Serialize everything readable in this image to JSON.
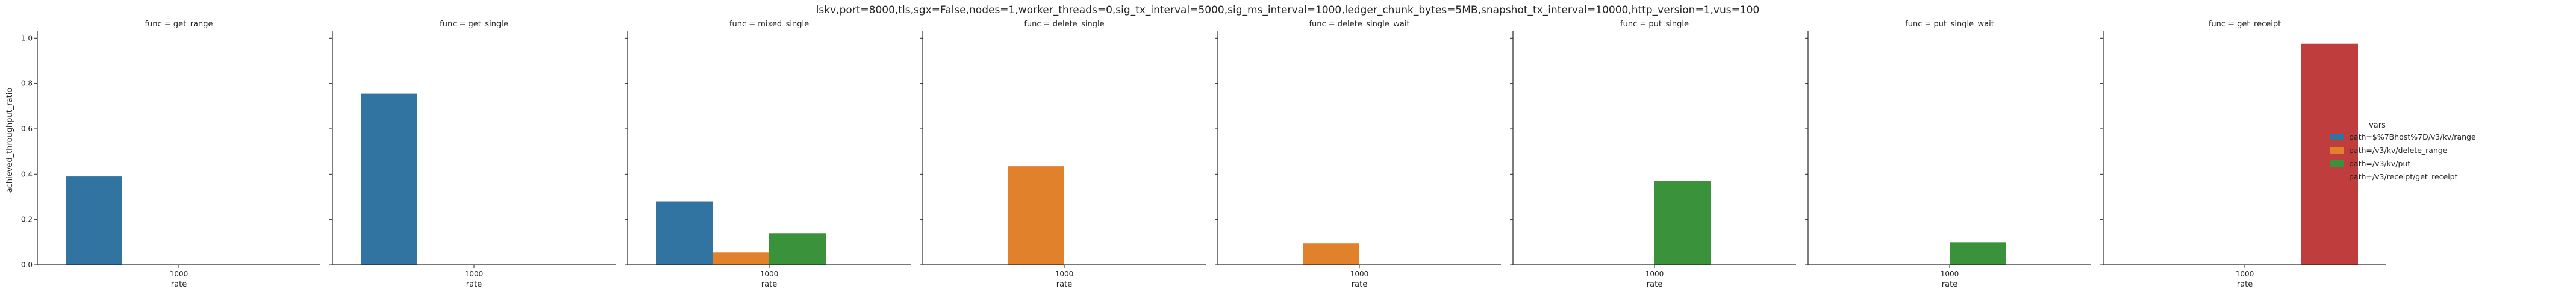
{
  "chart_data": {
    "type": "bar",
    "title": "lskv,port=8000,tls,sgx=False,nodes=1,worker_threads=0,sig_tx_interval=5000,sig_ms_interval=1000,ledger_chunk_bytes=5MB,snapshot_tx_interval=10000,http_version=1,vus=100",
    "xlabel": "rate",
    "ylabel": "achieved_throughput_ratio",
    "ylim": [
      0,
      1.03
    ],
    "yticks": [
      "0.0",
      "0.2",
      "0.4",
      "0.6",
      "0.8",
      "1.0"
    ],
    "categories": [
      "1000"
    ],
    "legend": {
      "title": "vars",
      "placement": "right",
      "entries": [
        {
          "label": "path=$%7Bhost%7D/v3/kv/range",
          "color": "#3274a1"
        },
        {
          "label": "path=/v3/kv/delete_range",
          "color": "#e1812c"
        },
        {
          "label": "path=/v3/kv/put",
          "color": "#3a923a"
        },
        {
          "label": "path=/v3/receipt/get_receipt",
          "color": "#c03d3e"
        }
      ]
    },
    "panels": [
      {
        "title": "func = get_range",
        "values": [
          0.39,
          null,
          null,
          null
        ]
      },
      {
        "title": "func = get_single",
        "values": [
          0.755,
          null,
          null,
          null
        ]
      },
      {
        "title": "func = mixed_single",
        "values": [
          0.28,
          0.055,
          0.14,
          null
        ]
      },
      {
        "title": "func = delete_single",
        "values": [
          null,
          0.435,
          null,
          null
        ]
      },
      {
        "title": "func = delete_single_wait",
        "values": [
          null,
          0.095,
          null,
          null
        ]
      },
      {
        "title": "func = put_single",
        "values": [
          null,
          null,
          0.37,
          null
        ]
      },
      {
        "title": "func = put_single_wait",
        "values": [
          null,
          null,
          0.1,
          null
        ]
      },
      {
        "title": "func = get_receipt",
        "values": [
          null,
          null,
          null,
          0.975
        ]
      }
    ]
  }
}
